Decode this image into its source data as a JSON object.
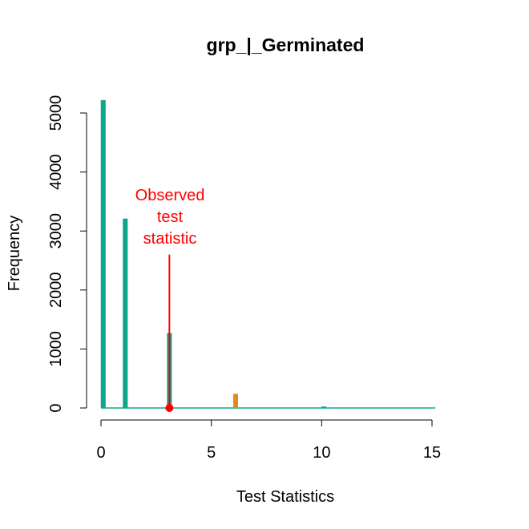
{
  "chart_data": {
    "type": "bar",
    "title": "grp_|_Germinated",
    "xlabel": "Test Statistics",
    "ylabel": "Frequency",
    "xlim": [
      0,
      15
    ],
    "ylim": [
      0,
      5250
    ],
    "x_ticks": [
      0,
      5,
      10,
      15
    ],
    "x_tick_labels": [
      "0",
      "5",
      "10",
      "15"
    ],
    "y_ticks": [
      0,
      1000,
      2000,
      3000,
      4000,
      5000
    ],
    "y_tick_labels": [
      "0",
      "1000",
      "2000",
      "3000",
      "4000",
      "5000"
    ],
    "grid": false,
    "bars": [
      {
        "x": 0.1,
        "value": 5220,
        "color": "#0ea68a"
      },
      {
        "x": 1.1,
        "value": 3210,
        "color": "#0ea68a"
      },
      {
        "x": 3.1,
        "value": 1270,
        "color": "#0ea68a"
      },
      {
        "x": 6.1,
        "value": 240,
        "color": "#e08a1e"
      },
      {
        "x": 10.1,
        "value": 25,
        "color": "#0ea68a"
      }
    ],
    "bar_width": 0.22,
    "baseline_color": "#0ea68a",
    "observed": {
      "x": 3.1,
      "line_top_value": 2600,
      "label_lines": [
        "Observed",
        "test",
        "statistic"
      ],
      "color": "#ff0000"
    }
  }
}
